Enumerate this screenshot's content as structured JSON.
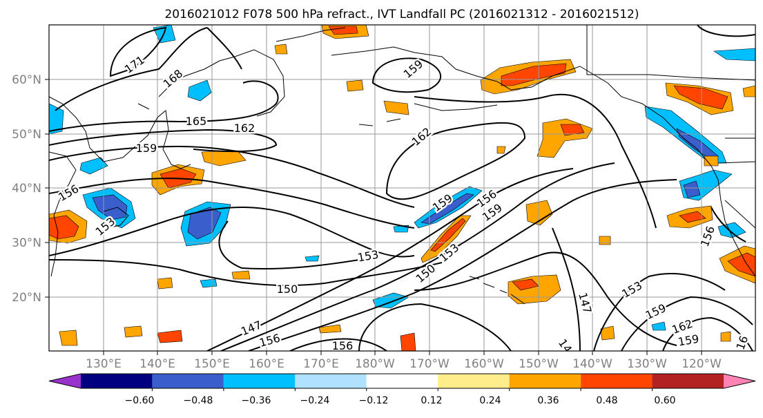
{
  "title": "2016021012 F078 500 hPa refract., IVT Landfall PC (2016021312 - 2016021512)",
  "lon_labels": [
    "130°E",
    "140°E",
    "150°E",
    "160°E",
    "170°E",
    "180°W",
    "170°W",
    "160°W",
    "150°W",
    "140°W",
    "130°W",
    "120°W"
  ],
  "lat_labels": [
    "60°N",
    "50°N",
    "40°N",
    "30°N",
    "20°N"
  ],
  "colorbar": {
    "colors": [
      "#9932cc",
      "#000080",
      "#3a5fcd",
      "#00bfff",
      "#b0e2ff",
      "#ffffff",
      "#ffec8b",
      "#ffa500",
      "#ff4500",
      "#b22222",
      "#ff83b4"
    ],
    "tick_labels": [
      "−0.60",
      "−0.48",
      "−0.36",
      "−0.24",
      "−0.12",
      "0.12",
      "0.24",
      "0.36",
      "0.48",
      "0.60"
    ]
  },
  "contour_labels": [
    "171",
    "168",
    "165",
    "162",
    "159",
    "156",
    "153",
    "150",
    "147",
    "162",
    "159",
    "156",
    "159",
    "153",
    "150",
    "159",
    "156",
    "153",
    "162",
    "159",
    "156",
    "147",
    "14",
    "153",
    "159",
    "16",
    "156"
  ]
}
